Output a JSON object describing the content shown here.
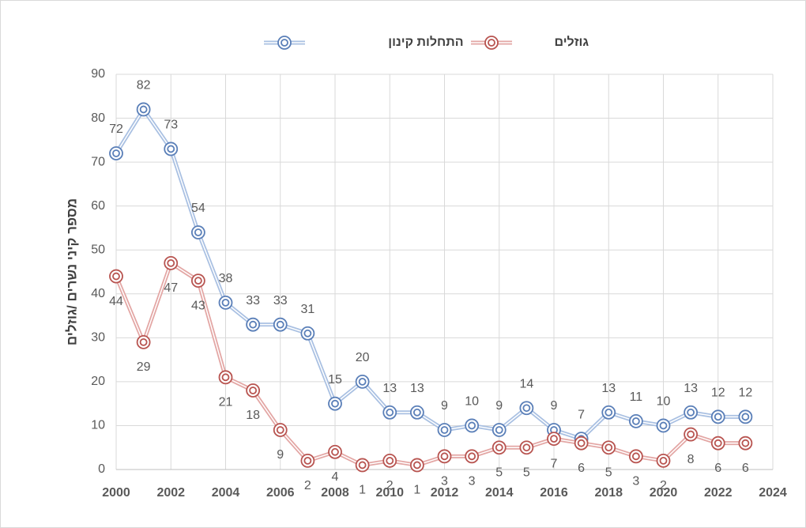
{
  "chart_data": {
    "type": "line",
    "y_label": "מספר קיני נשרים /גוזלים",
    "x": [
      2000,
      2001,
      2002,
      2003,
      2004,
      2005,
      2006,
      2007,
      2008,
      2009,
      2010,
      2011,
      2012,
      2013,
      2014,
      2015,
      2016,
      2017,
      2018,
      2019,
      2020,
      2021,
      2022,
      2023
    ],
    "series": [
      {
        "name": "התחלות קינון",
        "color": "#5a7fb8",
        "line_color": "#a9c0e2",
        "label_side": "above",
        "values": [
          72,
          82,
          73,
          54,
          38,
          33,
          33,
          31,
          15,
          20,
          13,
          13,
          9,
          10,
          9,
          14,
          9,
          7,
          13,
          11,
          10,
          13,
          12,
          12
        ]
      },
      {
        "name": "גוזלים",
        "color": "#b85450",
        "line_color": "#e3a6a4",
        "label_side": "below",
        "values": [
          44,
          29,
          47,
          43,
          21,
          18,
          9,
          2,
          4,
          1,
          2,
          1,
          3,
          3,
          5,
          5,
          7,
          6,
          5,
          3,
          2,
          8,
          6,
          6
        ]
      }
    ],
    "xlim": [
      2000,
      2024
    ],
    "xticks": [
      2000,
      2002,
      2004,
      2006,
      2008,
      2010,
      2012,
      2014,
      2016,
      2018,
      2020,
      2022,
      2024
    ],
    "ylim": [
      0,
      90
    ],
    "yticks": [
      0,
      10,
      20,
      30,
      40,
      50,
      60,
      70,
      80,
      90
    ],
    "grid": true,
    "legend": "top"
  }
}
